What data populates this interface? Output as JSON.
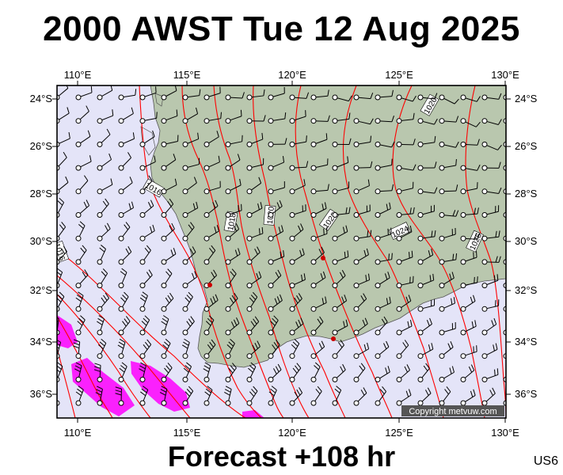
{
  "title": "2000 AWST Tue 12 Aug 2025",
  "footer": "Forecast +108 hr",
  "code": "US6",
  "copyright": "Copyright metvuw.com",
  "lon_labels": [
    "110°E",
    "115°E",
    "120°E",
    "125°E",
    "130°E"
  ],
  "lat_labels": [
    "24°S",
    "26°S",
    "28°S",
    "30°S",
    "32°S",
    "34°S",
    "36°S"
  ],
  "isobar_labels": [
    "1016",
    "1016",
    "1018",
    "1020",
    "1022",
    "1024",
    "1026",
    "1020",
    "1016"
  ],
  "colors": {
    "ocean": "#e4e4f8",
    "land": "#b9c7ae",
    "isobar": "#ff0000",
    "strong_wind": "#ff00ff",
    "city": "#cc0000"
  }
}
